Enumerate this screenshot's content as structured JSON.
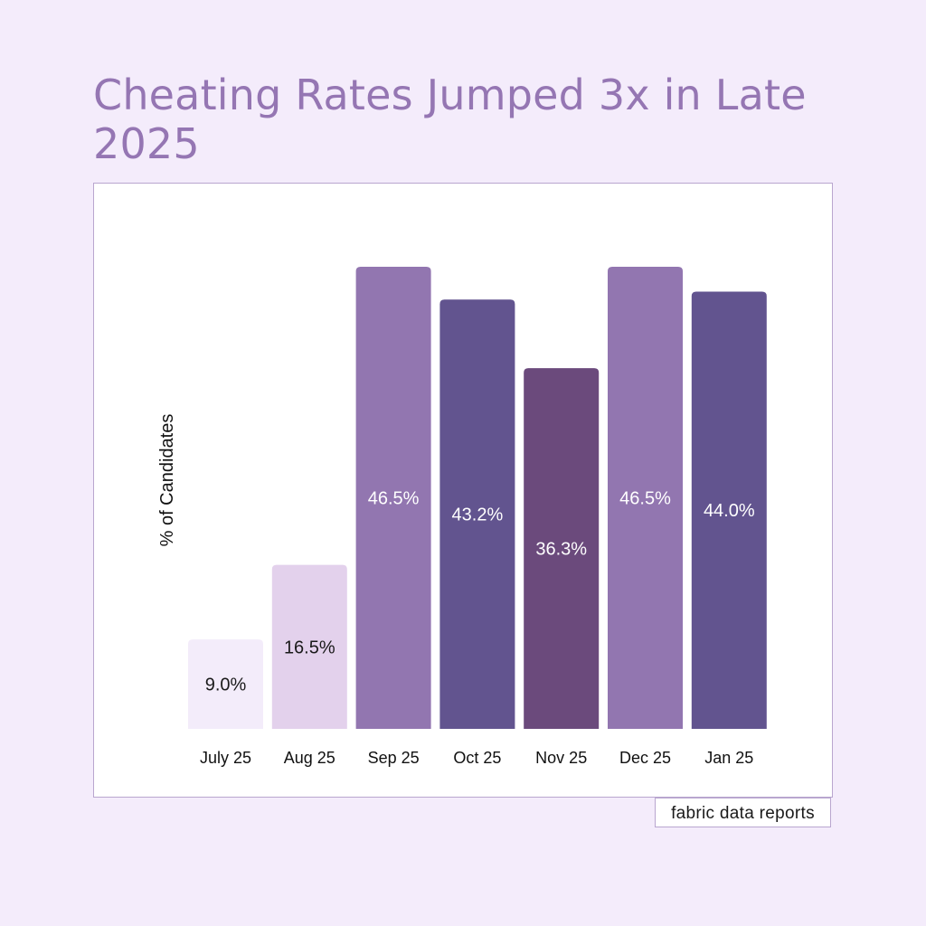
{
  "page": {
    "title": "Cheating Rates Jumped 3x in Late 2025",
    "source_label": "fabric data reports",
    "background_color": "#f4ecfb",
    "title_color": "#9576b3"
  },
  "chart_data": {
    "type": "bar",
    "title": "",
    "xlabel": "",
    "ylabel": "% of Candidates",
    "categories": [
      "July 25",
      "Aug 25",
      "Sep 25",
      "Oct 25",
      "Nov 25",
      "Dec 25",
      "Jan 25"
    ],
    "values": [
      9.0,
      16.5,
      46.5,
      43.2,
      36.3,
      46.5,
      44.0
    ],
    "value_labels": [
      "9.0%",
      "16.5%",
      "46.5%",
      "43.2%",
      "36.3%",
      "46.5%",
      "44.0%"
    ],
    "bar_colors": [
      "#f3ecfa",
      "#e3d1ec",
      "#9276b0",
      "#62548f",
      "#6b4a7c",
      "#9276b0",
      "#62548f"
    ],
    "label_colors": [
      "#1a1a1a",
      "#1a1a1a",
      "#ffffff",
      "#ffffff",
      "#ffffff",
      "#ffffff",
      "#ffffff"
    ],
    "ylim": [
      0,
      46.5
    ],
    "grid": false,
    "legend": "none"
  }
}
